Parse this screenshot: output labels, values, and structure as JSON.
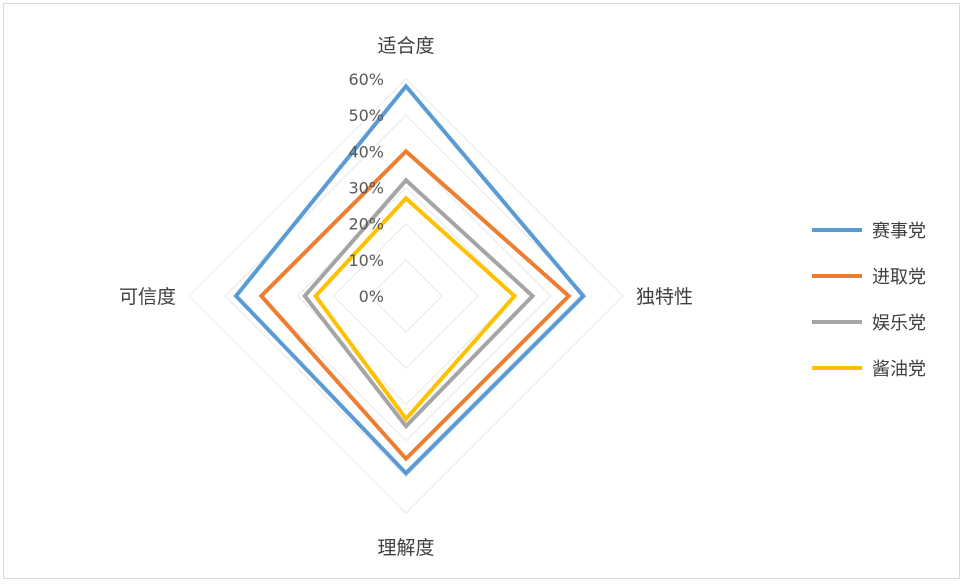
{
  "chart_data": {
    "type": "radar",
    "axes": [
      "适合度",
      "独特性",
      "理解度",
      "可信度"
    ],
    "r_ticks": [
      "0%",
      "10%",
      "20%",
      "30%",
      "40%",
      "50%",
      "60%"
    ],
    "r_range": [
      0,
      0.6
    ],
    "grid": true,
    "legend_position": "right",
    "series": [
      {
        "name": "赛事党",
        "color": "#5b9bd5",
        "values": [
          0.58,
          0.49,
          0.49,
          0.47
        ]
      },
      {
        "name": "进取党",
        "color": "#ed7d31",
        "values": [
          0.4,
          0.45,
          0.45,
          0.4
        ]
      },
      {
        "name": "娱乐党",
        "color": "#a5a5a5",
        "values": [
          0.32,
          0.35,
          0.36,
          0.28
        ]
      },
      {
        "name": "酱油党",
        "color": "#ffc000",
        "values": [
          0.27,
          0.3,
          0.34,
          0.25
        ]
      }
    ]
  }
}
